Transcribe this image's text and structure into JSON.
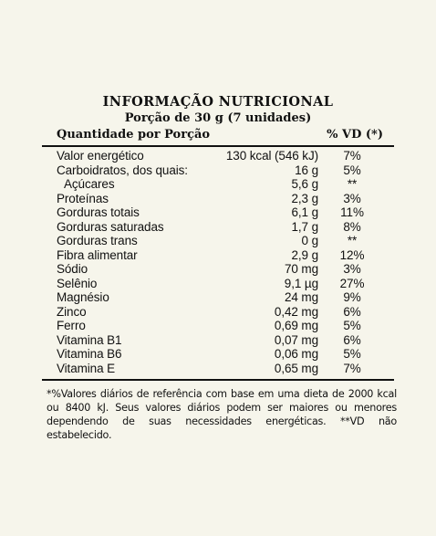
{
  "label": {
    "title": "INFORMAÇÃO NUTRICIONAL",
    "serving": "Porção de 30 g (7 unidades)",
    "header_left": "Quantidade por Porção",
    "header_right": "% VD (*)",
    "rows": [
      {
        "name": "Valor energético",
        "qty": "130 kcal (546 kJ)",
        "vd": "7%"
      },
      {
        "name": "Carboidratos, dos quais:",
        "qty": "16 g",
        "vd": "5%"
      },
      {
        "name": "Açúcares",
        "qty": "5,6 g",
        "vd": "**"
      },
      {
        "name": "Proteínas",
        "qty": "2,3 g",
        "vd": "3%"
      },
      {
        "name": "Gorduras totais",
        "qty": "6,1 g",
        "vd": "11%"
      },
      {
        "name": "Gorduras saturadas",
        "qty": "1,7 g",
        "vd": "8%"
      },
      {
        "name": "Gorduras trans",
        "qty": "0 g",
        "vd": "**"
      },
      {
        "name": "Fibra alimentar",
        "qty": "2,9 g",
        "vd": "12%"
      },
      {
        "name": "Sódio",
        "qty": "70 mg",
        "vd": "3%"
      },
      {
        "name": "Selênio",
        "qty": "9,1 µg",
        "vd": "27%"
      },
      {
        "name": "Magnésio",
        "qty": "24 mg",
        "vd": "9%"
      },
      {
        "name": "Zinco",
        "qty": "0,42 mg",
        "vd": "6%"
      },
      {
        "name": "Ferro",
        "qty": "0,69 mg",
        "vd": "5%"
      },
      {
        "name": "Vitamina B1",
        "qty": "0,07 mg",
        "vd": "6%"
      },
      {
        "name": "Vitamina B6",
        "qty": "0,06 mg",
        "vd": "5%"
      },
      {
        "name": "Vitamina E",
        "qty": "0,65 mg",
        "vd": "7%"
      }
    ],
    "footnote": "*%Valores diários de referência com base em uma dieta de 2000 kcal ou 8400 kJ. Seus valores diários podem ser maiores ou menores dependendo de suas necessidades energéticas. **VD não estabelecido."
  }
}
